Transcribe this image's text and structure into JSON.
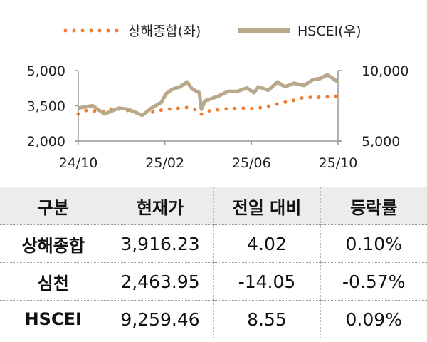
{
  "chart_data": {
    "type": "line",
    "xlabel": "",
    "ylabel": "",
    "x_ticks": [
      "24/10",
      "25/02",
      "25/06",
      "25/10"
    ],
    "x_range": [
      "2024-10-01",
      "2025-10-01"
    ],
    "y_left": {
      "range": [
        2000,
        5000
      ],
      "ticks": [
        "2,000",
        "3,500",
        "5,000"
      ]
    },
    "y_right": {
      "range": [
        5000,
        10000
      ],
      "ticks": [
        "5,000",
        "10,000"
      ]
    },
    "grid": false,
    "legend": "top",
    "series": [
      {
        "name": "상해종합(좌)",
        "axis": "left",
        "color": "#ED7D31",
        "style": "dotted",
        "x": [
          "2024-10-01",
          "2024-10-11",
          "2024-11-07",
          "2024-11-20",
          "2024-12-10",
          "2024-12-30",
          "2025-01-16",
          "2025-01-28",
          "2025-02-09",
          "2025-03-03",
          "2025-03-15",
          "2025-03-22",
          "2025-04-02",
          "2025-04-26",
          "2025-05-22",
          "2025-06-05",
          "2025-06-28",
          "2025-07-12",
          "2025-08-04",
          "2025-08-14",
          "2025-09-03",
          "2025-09-30"
        ],
        "y": [
          3150,
          3300,
          3250,
          3400,
          3300,
          3150,
          3250,
          3330,
          3370,
          3430,
          3330,
          3130,
          3280,
          3370,
          3400,
          3370,
          3500,
          3610,
          3760,
          3860,
          3860,
          3910
        ]
      },
      {
        "name": "HSCEI(우)",
        "axis": "right",
        "color": "#B9A88A",
        "style": "solid",
        "x": [
          "2024-10-01",
          "2024-10-21",
          "2024-11-07",
          "2024-11-27",
          "2024-12-10",
          "2024-12-30",
          "2025-01-12",
          "2025-01-26",
          "2025-02-01",
          "2025-02-11",
          "2025-02-21",
          "2025-03-03",
          "2025-03-10",
          "2025-03-20",
          "2025-03-23",
          "2025-03-28",
          "2025-04-16",
          "2025-04-29",
          "2025-05-12",
          "2025-05-26",
          "2025-06-05",
          "2025-06-11",
          "2025-06-25",
          "2025-07-08",
          "2025-07-18",
          "2025-07-31",
          "2025-08-14",
          "2025-08-27",
          "2025-09-06",
          "2025-09-16",
          "2025-09-26",
          "2025-10-01"
        ],
        "y": [
          7340,
          7510,
          6920,
          7340,
          7260,
          6830,
          7340,
          7760,
          8350,
          8690,
          8850,
          9190,
          8690,
          8430,
          7260,
          7850,
          8180,
          8520,
          8520,
          8770,
          8430,
          8850,
          8600,
          9190,
          8850,
          9100,
          8940,
          9360,
          9440,
          9700,
          9360,
          9190
        ]
      }
    ]
  },
  "table": {
    "headers": [
      "구분",
      "현재가",
      "전일 대비",
      "등락률"
    ],
    "rows": [
      [
        "상해종합",
        "3,916.23",
        "4.02",
        "0.10%"
      ],
      [
        "심천",
        "2,463.95",
        "-14.05",
        "-0.57%"
      ],
      [
        "HSCEI",
        "9,259.46",
        "8.55",
        "0.09%"
      ]
    ]
  }
}
